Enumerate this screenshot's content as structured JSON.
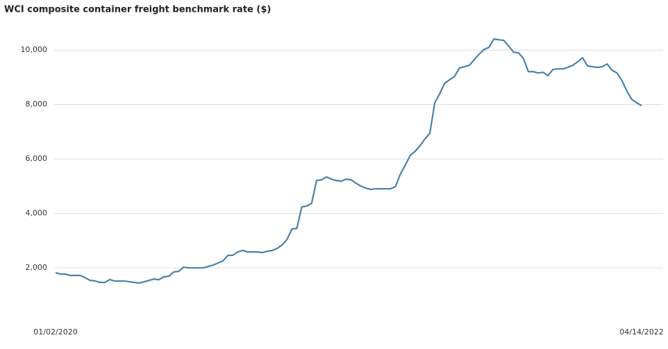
{
  "chart_data": {
    "type": "line",
    "title": "WCI composite container freight benchmark rate ($)",
    "categories": [
      "01/02/2020",
      null,
      null,
      null,
      null,
      null,
      null,
      null,
      null,
      null,
      null,
      null,
      null,
      null,
      null,
      null,
      null,
      null,
      null,
      null,
      null,
      null,
      null,
      null,
      null,
      null,
      null,
      null,
      null,
      null,
      null,
      null,
      null,
      null,
      null,
      null,
      null,
      null,
      null,
      null,
      null,
      null,
      null,
      null,
      null,
      null,
      null,
      null,
      null,
      null,
      null,
      null,
      null,
      null,
      null,
      null,
      null,
      null,
      null,
      null,
      null,
      null,
      null,
      null,
      null,
      null,
      null,
      null,
      null,
      null,
      null,
      null,
      null,
      null,
      null,
      null,
      null,
      null,
      null,
      null,
      null,
      null,
      null,
      null,
      null,
      null,
      null,
      null,
      null,
      null,
      null,
      null,
      null,
      null,
      null,
      null,
      null,
      null,
      null,
      null,
      null,
      null,
      null,
      null,
      null,
      null,
      null,
      null,
      null,
      null,
      null,
      null,
      null,
      null,
      null,
      null,
      null,
      null,
      null,
      "04/14/2022"
    ],
    "values": [
      1822,
      1770,
      1770,
      1720,
      1720,
      1720,
      1640,
      1540,
      1520,
      1465,
      1465,
      1570,
      1515,
      1515,
      1515,
      1490,
      1465,
      1440,
      1490,
      1540,
      1590,
      1565,
      1670,
      1695,
      1850,
      1870,
      2025,
      2000,
      2000,
      2000,
      2000,
      2050,
      2100,
      2180,
      2255,
      2460,
      2460,
      2585,
      2640,
      2585,
      2585,
      2585,
      2560,
      2610,
      2640,
      2715,
      2840,
      3045,
      3425,
      3450,
      4240,
      4270,
      4370,
      5210,
      5235,
      5340,
      5260,
      5210,
      5185,
      5260,
      5235,
      5110,
      5005,
      4930,
      4880,
      4905,
      4905,
      4905,
      4905,
      4980,
      5440,
      5770,
      6130,
      6280,
      6485,
      6740,
      6945,
      8065,
      8395,
      8780,
      8910,
      9030,
      9340,
      9390,
      9440,
      9645,
      9850,
      10025,
      10100,
      10410,
      10380,
      10360,
      10150,
      9925,
      9900,
      9695,
      9210,
      9210,
      9160,
      9185,
      9060,
      9290,
      9310,
      9310,
      9365,
      9440,
      9570,
      9720,
      9420,
      9390,
      9365,
      9390,
      9490,
      9260,
      9160,
      8880,
      8500,
      8190,
      8065,
      7960
    ],
    "color": "#4a80a8",
    "ylim": [
      0,
      11000
    ],
    "yticks": [
      {
        "value": 2000,
        "label": "2,000"
      },
      {
        "value": 4000,
        "label": "4,000"
      },
      {
        "value": 6000,
        "label": "6,000"
      },
      {
        "value": 8000,
        "label": "8,000"
      },
      {
        "value": 10000,
        "label": "10,000"
      }
    ],
    "grid": true
  }
}
